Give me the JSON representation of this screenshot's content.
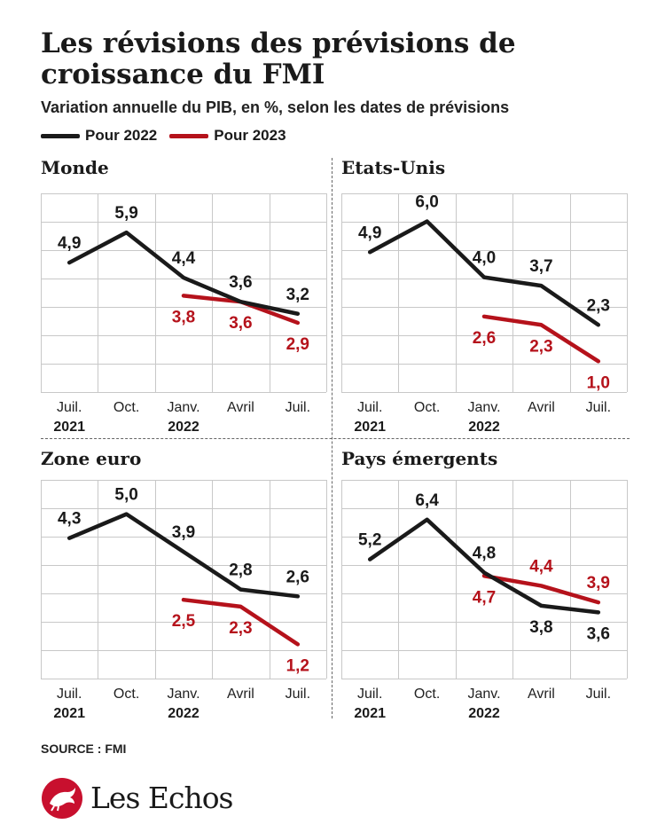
{
  "title": "Les révisions des prévisions de croissance du FMI",
  "subtitle": "Variation annuelle du PIB, en %, selon les dates de prévisions",
  "legend": [
    {
      "label": "Pour 2022",
      "color": "#1a1a1a"
    },
    {
      "label": "Pour 2023",
      "color": "#b5121b"
    }
  ],
  "source": "SOURCE : FMI",
  "logo_text": "Les Echos",
  "colors": {
    "series_2022": "#1a1a1a",
    "series_2023": "#b5121b",
    "grid": "#c8c8c8"
  },
  "chart_data": [
    {
      "type": "line",
      "title": "Monde",
      "categories": [
        "Juil.",
        "Oct.",
        "Janv.",
        "Avril",
        "Juil."
      ],
      "years": [
        "2021",
        "",
        "2022",
        "",
        ""
      ],
      "ylim": [
        0.6,
        7.2
      ],
      "grid": true,
      "series": [
        {
          "name": "Pour 2022",
          "values": [
            4.9,
            5.9,
            4.4,
            3.6,
            3.2
          ],
          "labels": [
            "4,9",
            "5,9",
            "4,4",
            "3,6",
            "3,2"
          ]
        },
        {
          "name": "Pour 2023",
          "values": [
            null,
            null,
            3.8,
            3.6,
            2.9
          ],
          "labels": [
            "",
            "",
            "3,8",
            "3,6",
            "2,9"
          ]
        }
      ]
    },
    {
      "type": "line",
      "title": "Etats-Unis",
      "categories": [
        "Juil.",
        "Oct.",
        "Janv.",
        "Avril",
        "Juil."
      ],
      "years": [
        "2021",
        "",
        "2022",
        "",
        ""
      ],
      "ylim": [
        -0.1,
        7.0
      ],
      "grid": true,
      "series": [
        {
          "name": "Pour 2022",
          "values": [
            4.9,
            6.0,
            4.0,
            3.7,
            2.3
          ],
          "labels": [
            "4,9",
            "6,0",
            "4,0",
            "3,7",
            "2,3"
          ]
        },
        {
          "name": "Pour 2023",
          "values": [
            null,
            null,
            2.6,
            2.3,
            1.0
          ],
          "labels": [
            "",
            "",
            "2,6",
            "2,3",
            "1,0"
          ]
        }
      ]
    },
    {
      "type": "line",
      "title": "Zone euro",
      "categories": [
        "Juil.",
        "Oct.",
        "Janv.",
        "Avril",
        "Juil."
      ],
      "years": [
        "2021",
        "",
        "2022",
        "",
        ""
      ],
      "ylim": [
        0.2,
        6.0
      ],
      "grid": true,
      "series": [
        {
          "name": "Pour 2022",
          "values": [
            4.3,
            5.0,
            3.9,
            2.8,
            2.6
          ],
          "labels": [
            "4,3",
            "5,0",
            "3,9",
            "2,8",
            "2,6"
          ]
        },
        {
          "name": "Pour 2023",
          "values": [
            null,
            null,
            2.5,
            2.3,
            1.2
          ],
          "labels": [
            "",
            "",
            "2,5",
            "2,3",
            "1,2"
          ]
        }
      ]
    },
    {
      "type": "line",
      "title": "Pays émergents",
      "categories": [
        "Juil.",
        "Oct.",
        "Janv.",
        "Avril",
        "Juil."
      ],
      "years": [
        "2021",
        "",
        "2022",
        "",
        ""
      ],
      "ylim": [
        1.6,
        7.6
      ],
      "grid": true,
      "series": [
        {
          "name": "Pour 2022",
          "values": [
            5.2,
            6.4,
            4.8,
            3.8,
            3.6
          ],
          "labels": [
            "5,2",
            "6,4",
            "4,8",
            "3,8",
            "3,6"
          ]
        },
        {
          "name": "Pour 2023",
          "values": [
            null,
            null,
            4.7,
            4.4,
            3.9
          ],
          "labels": [
            "",
            "",
            "4,7",
            "4,4",
            "3,9"
          ]
        }
      ]
    }
  ]
}
